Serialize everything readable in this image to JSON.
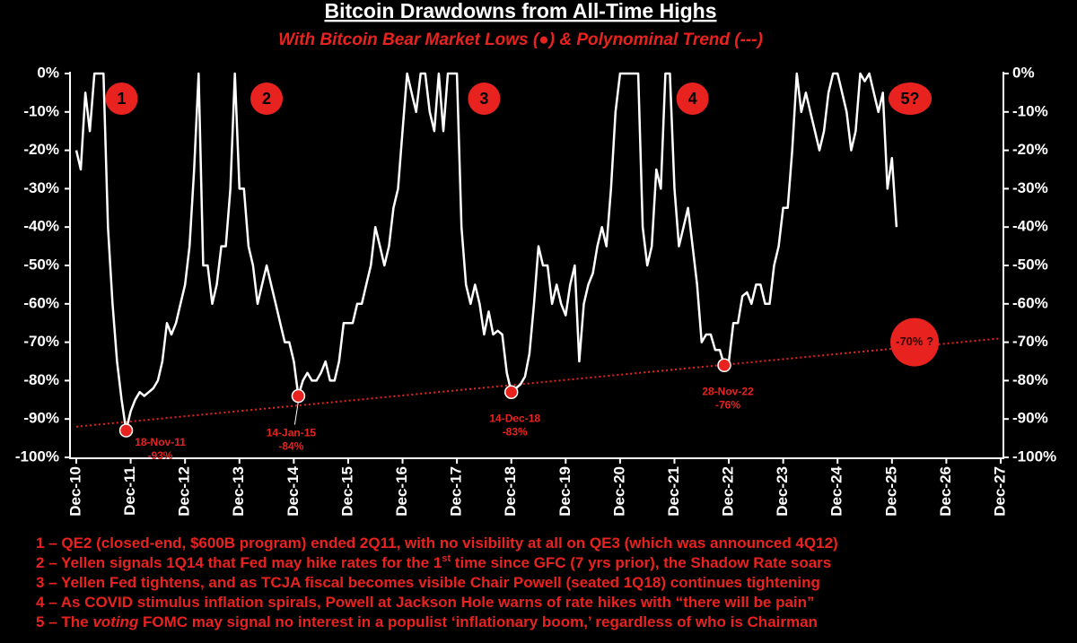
{
  "chart_data": {
    "type": "line",
    "title": "Bitcoin Drawdowns from All-Time Highs",
    "subtitle": "With Bitcoin Bear Market Lows (●) & Polynominal Trend (---)",
    "xlim": [
      "2010-12",
      "2027-12"
    ],
    "xticks": [
      {
        "value": "2010-12",
        "label": "Dec-10"
      },
      {
        "value": "2011-12",
        "label": "Dec-11"
      },
      {
        "value": "2012-12",
        "label": "Dec-12"
      },
      {
        "value": "2013-12",
        "label": "Dec-13"
      },
      {
        "value": "2014-12",
        "label": "Dec-14"
      },
      {
        "value": "2015-12",
        "label": "Dec-15"
      },
      {
        "value": "2016-12",
        "label": "Dec-16"
      },
      {
        "value": "2017-12",
        "label": "Dec-17"
      },
      {
        "value": "2018-12",
        "label": "Dec-18"
      },
      {
        "value": "2019-12",
        "label": "Dec-19"
      },
      {
        "value": "2020-12",
        "label": "Dec-20"
      },
      {
        "value": "2021-12",
        "label": "Dec-21"
      },
      {
        "value": "2022-12",
        "label": "Dec-22"
      },
      {
        "value": "2023-12",
        "label": "Dec-23"
      },
      {
        "value": "2024-12",
        "label": "Dec-24"
      },
      {
        "value": "2025-12",
        "label": "Dec-25"
      },
      {
        "value": "2026-12",
        "label": "Dec-26"
      },
      {
        "value": "2027-12",
        "label": "Dec-27"
      }
    ],
    "ylim": [
      -100,
      0
    ],
    "yticks": [
      {
        "value": 0,
        "label": "0%"
      },
      {
        "value": -10,
        "label": "-10%"
      },
      {
        "value": -20,
        "label": "-20%"
      },
      {
        "value": -30,
        "label": "-30%"
      },
      {
        "value": -40,
        "label": "-40%"
      },
      {
        "value": -50,
        "label": "-50%"
      },
      {
        "value": -60,
        "label": "-60%"
      },
      {
        "value": -70,
        "label": "-70%"
      },
      {
        "value": -80,
        "label": "-80%"
      },
      {
        "value": -90,
        "label": "-90%"
      },
      {
        "value": -100,
        "label": "-100%"
      }
    ],
    "line_color": "#ffffff",
    "accent_color": "#e8231f",
    "x": [
      "2010-12",
      "2011-01",
      "2011-02",
      "2011-03",
      "2011-04",
      "2011-05",
      "2011-06",
      "2011-07",
      "2011-08",
      "2011-09",
      "2011-10",
      "2011-11",
      "2011-12",
      "2012-01",
      "2012-02",
      "2012-03",
      "2012-04",
      "2012-05",
      "2012-06",
      "2012-07",
      "2012-08",
      "2012-09",
      "2012-10",
      "2012-11",
      "2012-12",
      "2013-01",
      "2013-02",
      "2013-03",
      "2013-04",
      "2013-05",
      "2013-06",
      "2013-07",
      "2013-08",
      "2013-09",
      "2013-10",
      "2013-11",
      "2013-12",
      "2014-01",
      "2014-02",
      "2014-03",
      "2014-04",
      "2014-05",
      "2014-06",
      "2014-07",
      "2014-08",
      "2014-09",
      "2014-10",
      "2014-11",
      "2014-12",
      "2015-01",
      "2015-02",
      "2015-03",
      "2015-04",
      "2015-05",
      "2015-06",
      "2015-07",
      "2015-08",
      "2015-09",
      "2015-10",
      "2015-11",
      "2015-12",
      "2016-01",
      "2016-02",
      "2016-03",
      "2016-04",
      "2016-05",
      "2016-06",
      "2016-07",
      "2016-08",
      "2016-09",
      "2016-10",
      "2016-11",
      "2016-12",
      "2017-01",
      "2017-02",
      "2017-03",
      "2017-04",
      "2017-05",
      "2017-06",
      "2017-07",
      "2017-08",
      "2017-09",
      "2017-10",
      "2017-11",
      "2017-12",
      "2018-01",
      "2018-02",
      "2018-03",
      "2018-04",
      "2018-05",
      "2018-06",
      "2018-07",
      "2018-08",
      "2018-09",
      "2018-10",
      "2018-11",
      "2018-12",
      "2019-01",
      "2019-02",
      "2019-03",
      "2019-04",
      "2019-05",
      "2019-06",
      "2019-07",
      "2019-08",
      "2019-09",
      "2019-10",
      "2019-11",
      "2019-12",
      "2020-01",
      "2020-02",
      "2020-03",
      "2020-04",
      "2020-05",
      "2020-06",
      "2020-07",
      "2020-08",
      "2020-09",
      "2020-10",
      "2020-11",
      "2020-12",
      "2021-01",
      "2021-02",
      "2021-03",
      "2021-04",
      "2021-05",
      "2021-06",
      "2021-07",
      "2021-08",
      "2021-09",
      "2021-10",
      "2021-11",
      "2021-12",
      "2022-01",
      "2022-02",
      "2022-03",
      "2022-04",
      "2022-05",
      "2022-06",
      "2022-07",
      "2022-08",
      "2022-09",
      "2022-10",
      "2022-11",
      "2022-12",
      "2023-01",
      "2023-02",
      "2023-03",
      "2023-04",
      "2023-05",
      "2023-06",
      "2023-07",
      "2023-08",
      "2023-09",
      "2023-10",
      "2023-11",
      "2023-12",
      "2024-01",
      "2024-02",
      "2024-03",
      "2024-04",
      "2024-05",
      "2024-06",
      "2024-07",
      "2024-08",
      "2024-09",
      "2024-10",
      "2024-11",
      "2024-12",
      "2025-01",
      "2025-02",
      "2025-03",
      "2025-04",
      "2025-05",
      "2025-06",
      "2025-07",
      "2025-08",
      "2025-09",
      "2025-10",
      "2025-11",
      "2025-12",
      "2026-01"
    ],
    "values": [
      -20,
      -25,
      -5,
      -15,
      0,
      0,
      0,
      -40,
      -60,
      -75,
      -85,
      -93,
      -88,
      -85,
      -83,
      -84,
      -83,
      -82,
      -80,
      -75,
      -65,
      -68,
      -65,
      -60,
      -55,
      -45,
      -25,
      0,
      -50,
      -50,
      -60,
      -55,
      -45,
      -45,
      -30,
      0,
      -30,
      -30,
      -45,
      -50,
      -60,
      -55,
      -50,
      -55,
      -60,
      -65,
      -70,
      -70,
      -75,
      -84,
      -80,
      -78,
      -80,
      -80,
      -78,
      -75,
      -80,
      -80,
      -75,
      -65,
      -65,
      -65,
      -60,
      -60,
      -55,
      -50,
      -40,
      -45,
      -50,
      -45,
      -35,
      -30,
      -15,
      0,
      -5,
      -10,
      0,
      0,
      -10,
      -15,
      0,
      -15,
      0,
      0,
      0,
      -40,
      -55,
      -60,
      -55,
      -60,
      -68,
      -62,
      -68,
      -67,
      -68,
      -78,
      -83,
      -82,
      -81,
      -79,
      -73,
      -60,
      -45,
      -50,
      -50,
      -60,
      -55,
      -60,
      -63,
      -55,
      -50,
      -75,
      -60,
      -55,
      -52,
      -45,
      -40,
      -45,
      -30,
      -10,
      0,
      0,
      0,
      0,
      0,
      -40,
      -50,
      -45,
      -25,
      -30,
      0,
      0,
      -30,
      -45,
      -40,
      -35,
      -45,
      -55,
      -70,
      -68,
      -68,
      -72,
      -72,
      -76,
      -75,
      -65,
      -65,
      -58,
      -57,
      -60,
      -55,
      -55,
      -60,
      -60,
      -50,
      -45,
      -35,
      -35,
      -20,
      0,
      -10,
      -5,
      -10,
      -15,
      -20,
      -15,
      -5,
      0,
      0,
      -5,
      -10,
      -20,
      -15,
      0,
      -2,
      0,
      -5,
      -10,
      -5,
      -30,
      -22,
      -40
    ],
    "lows": [
      {
        "x": "2011-11",
        "value": -93,
        "label": "18-Nov-11",
        "value_label": "-93%"
      },
      {
        "x": "2015-01",
        "value": -84,
        "label": "14-Jan-15",
        "value_label": "-84%"
      },
      {
        "x": "2018-12",
        "value": -83,
        "label": "14-Dec-18",
        "value_label": "-83%"
      },
      {
        "x": "2022-11",
        "value": -76,
        "label": "28-Nov-22",
        "value_label": "-76%"
      }
    ],
    "trend": {
      "x": [
        "2010-12",
        "2027-12"
      ],
      "values": [
        -92,
        -69
      ]
    },
    "forecast": {
      "x": "2026-05",
      "value": -70,
      "label": "-70% ?"
    },
    "cycle_markers": [
      {
        "x": "2011-10",
        "label": "1"
      },
      {
        "x": "2014-06",
        "label": "2"
      },
      {
        "x": "2018-06",
        "label": "3"
      },
      {
        "x": "2022-04",
        "label": "4"
      },
      {
        "x": "2026-04",
        "label": "5?"
      }
    ],
    "notes": [
      [
        {
          "text": "1 – QE2 (closed-end, $600B program) ended 2Q11, with no visibility at all on QE3 (which was announced 4Q12)"
        }
      ],
      [
        {
          "text": "2 – Yellen signals 1Q14 that Fed may hike rates for the 1"
        },
        {
          "text": "st",
          "sup": true
        },
        {
          "text": " time since GFC (7 yrs prior), the Shadow Rate soars"
        }
      ],
      [
        {
          "text": "3 – Yellen Fed tightens, and as TCJA fiscal becomes visible Chair Powell (seated 1Q18) continues tightening"
        }
      ],
      [
        {
          "text": "4 – As COVID stimulus inflation spirals, Powell at Jackson Hole warns of rate hikes with “there will be pain”"
        }
      ],
      [
        {
          "text": "5 – The "
        },
        {
          "text": "voting",
          "italic": true
        },
        {
          "text": " FOMC may signal no interest in a populist ‘inflationary boom,’ regardless of who is Chairman"
        }
      ]
    ]
  }
}
